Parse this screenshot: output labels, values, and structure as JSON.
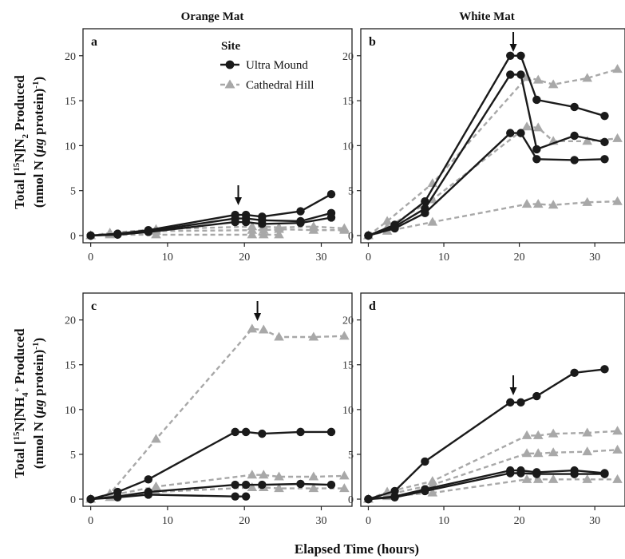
{
  "figure": {
    "col_titles": [
      "Orange Mat",
      "White Mat"
    ],
    "xlabel": "Elapsed Time (hours)",
    "ylabel_top": [
      "Total [",
      "15",
      "N]N",
      "2",
      " Produced"
    ],
    "ylabel_bottom": [
      "Total [",
      "15",
      "N]NH",
      "4",
      "+",
      " Produced"
    ],
    "ylabel_unit": [
      "(nmol N (",
      "μg",
      " protein)",
      "-1",
      ")"
    ],
    "legend": {
      "title": "Site",
      "entries": [
        {
          "name": "Ultra Mound",
          "marker": "circle",
          "color": "#1a1a1a",
          "dash": "solid"
        },
        {
          "name": "Cathedral Hill",
          "marker": "triangle",
          "color": "#a8a8a8",
          "dash": "dashed"
        }
      ]
    }
  },
  "chart_data": [
    {
      "type": "line",
      "panel": "a",
      "column": "Orange Mat",
      "xlim": [
        -1,
        34
      ],
      "ylim": [
        -0.8,
        23
      ],
      "xticks": [
        0,
        10,
        20,
        30
      ],
      "yticks": [
        0,
        5,
        10,
        15,
        20
      ],
      "arrows": [
        19.2
      ],
      "series": [
        {
          "name": "Ultra Mound",
          "x": [
            0,
            3.5,
            7.5,
            18.8,
            20.2,
            22.3,
            27.3,
            31.3
          ],
          "y": [
            0,
            0.2,
            0.6,
            2.3,
            2.3,
            2.1,
            2.7,
            4.6
          ]
        },
        {
          "name": "Ultra Mound",
          "x": [
            0,
            3.5,
            7.5,
            18.8,
            20.2,
            22.3,
            27.3,
            31.3
          ],
          "y": [
            0,
            0.2,
            0.5,
            1.9,
            1.9,
            1.7,
            1.6,
            2.5
          ]
        },
        {
          "name": "Ultra Mound",
          "x": [
            0,
            3.5,
            7.5,
            18.8,
            20.2,
            22.3,
            27.3,
            31.3
          ],
          "y": [
            0,
            0.1,
            0.4,
            1.5,
            1.5,
            1.3,
            1.4,
            2.0
          ]
        },
        {
          "name": "Cathedral Hill",
          "x": [
            0,
            2.5,
            8.5,
            21,
            22.5,
            24.5,
            29,
            33
          ],
          "y": [
            0,
            0.3,
            0.7,
            1.0,
            1.0,
            0.9,
            1.0,
            0.8
          ]
        },
        {
          "name": "Cathedral Hill",
          "x": [
            0,
            2.5,
            8.5,
            21,
            22.5,
            24.5,
            29,
            33
          ],
          "y": [
            0,
            0.2,
            0.5,
            0.6,
            0.6,
            0.7,
            0.6,
            0.6
          ]
        },
        {
          "name": "Cathedral Hill",
          "x": [
            0,
            2.5,
            8.5,
            21,
            22.5,
            24.5
          ],
          "y": [
            0,
            0.1,
            0.1,
            0.1,
            0.1,
            0.1
          ]
        }
      ]
    },
    {
      "type": "line",
      "panel": "b",
      "column": "White Mat",
      "xlim": [
        -1,
        34
      ],
      "ylim": [
        -0.8,
        23
      ],
      "xticks": [
        0,
        10,
        20,
        30
      ],
      "yticks": [
        0,
        5,
        10,
        15,
        20
      ],
      "arrows": [
        19.2
      ],
      "series": [
        {
          "name": "Ultra Mound",
          "x": [
            0,
            3.5,
            7.5,
            18.8,
            20.2,
            22.3,
            27.3,
            31.3
          ],
          "y": [
            0,
            1.2,
            3.8,
            20.0,
            20.0,
            15.1,
            14.3,
            13.3
          ]
        },
        {
          "name": "Ultra Mound",
          "x": [
            0,
            3.5,
            7.5,
            18.8,
            20.2,
            22.3,
            27.3,
            31.3
          ],
          "y": [
            0,
            1.0,
            3.0,
            17.9,
            17.9,
            9.6,
            11.1,
            10.4
          ]
        },
        {
          "name": "Ultra Mound",
          "x": [
            0,
            3.5,
            7.5,
            18.8,
            20.2,
            22.3,
            27.3,
            31.3
          ],
          "y": [
            0,
            0.8,
            2.5,
            11.4,
            11.4,
            8.5,
            8.4,
            8.5
          ]
        },
        {
          "name": "Cathedral Hill",
          "x": [
            0,
            2.5,
            8.5,
            21,
            22.5,
            24.5,
            29,
            33
          ],
          "y": [
            0,
            1.6,
            5.8,
            17.6,
            17.3,
            16.8,
            17.5,
            18.5
          ]
        },
        {
          "name": "Cathedral Hill",
          "x": [
            0,
            2.5,
            8.5,
            21,
            22.5,
            24.5,
            29,
            33
          ],
          "y": [
            0,
            0.9,
            4.0,
            12.1,
            12.0,
            10.5,
            10.5,
            10.8
          ]
        },
        {
          "name": "Cathedral Hill",
          "x": [
            0,
            2.5,
            8.5,
            21,
            22.5,
            24.5,
            29,
            33
          ],
          "y": [
            0,
            0.5,
            1.5,
            3.5,
            3.5,
            3.4,
            3.7,
            3.8
          ]
        }
      ]
    },
    {
      "type": "line",
      "panel": "c",
      "column": "Orange Mat",
      "xlim": [
        -1,
        34
      ],
      "ylim": [
        -0.8,
        23
      ],
      "xticks": [
        0,
        10,
        20,
        30
      ],
      "yticks": [
        0,
        5,
        10,
        15,
        20
      ],
      "arrows": [
        21.7
      ],
      "series": [
        {
          "name": "Ultra Mound",
          "x": [
            0,
            3.5,
            7.5,
            18.8,
            20.2,
            22.3,
            27.3,
            31.3
          ],
          "y": [
            0,
            0.8,
            2.2,
            7.5,
            7.5,
            7.3,
            7.5,
            7.5
          ]
        },
        {
          "name": "Ultra Mound",
          "x": [
            0,
            3.5,
            7.5,
            18.8,
            20.2,
            22.3,
            27.3,
            31.3
          ],
          "y": [
            0,
            0.3,
            0.8,
            1.6,
            1.6,
            1.6,
            1.7,
            1.6
          ]
        },
        {
          "name": "Ultra Mound",
          "x": [
            0,
            3.5,
            7.5,
            18.8,
            20.2
          ],
          "y": [
            0,
            0.2,
            0.5,
            0.3,
            0.3
          ]
        },
        {
          "name": "Cathedral Hill",
          "x": [
            0,
            2.5,
            8.5,
            21,
            22.5,
            24.5,
            29,
            33
          ],
          "y": [
            0,
            0.6,
            6.7,
            19.0,
            18.9,
            18.1,
            18.1,
            18.2
          ]
        },
        {
          "name": "Cathedral Hill",
          "x": [
            0,
            2.5,
            8.5,
            21,
            22.5,
            24.5,
            29,
            33
          ],
          "y": [
            0,
            0.4,
            1.4,
            2.7,
            2.7,
            2.5,
            2.5,
            2.6
          ]
        },
        {
          "name": "Cathedral Hill",
          "x": [
            0,
            2.5,
            8.5,
            21,
            22.5,
            24.5,
            29,
            33
          ],
          "y": [
            0,
            0.2,
            0.8,
            1.3,
            1.3,
            1.2,
            1.2,
            1.2
          ]
        }
      ]
    },
    {
      "type": "line",
      "panel": "d",
      "column": "White Mat",
      "xlim": [
        -1,
        34
      ],
      "ylim": [
        -0.8,
        23
      ],
      "xticks": [
        0,
        10,
        20,
        30
      ],
      "yticks": [
        0,
        5,
        10,
        15,
        20
      ],
      "arrows": [
        19.2
      ],
      "series": [
        {
          "name": "Ultra Mound",
          "x": [
            0,
            3.5,
            7.5,
            18.8,
            20.2,
            22.3,
            27.3,
            31.3
          ],
          "y": [
            0,
            0.9,
            4.2,
            10.8,
            10.8,
            11.5,
            14.1,
            14.5
          ]
        },
        {
          "name": "Ultra Mound",
          "x": [
            0,
            3.5,
            7.5,
            18.8,
            20.2,
            22.3,
            27.3,
            31.3
          ],
          "y": [
            0,
            0.3,
            1.1,
            3.2,
            3.2,
            3.0,
            3.2,
            2.9
          ]
        },
        {
          "name": "Ultra Mound",
          "x": [
            0,
            3.5,
            7.5,
            18.8,
            20.2,
            22.3,
            27.3,
            31.3
          ],
          "y": [
            0,
            0.2,
            0.9,
            2.9,
            2.9,
            2.8,
            2.8,
            2.8
          ]
        },
        {
          "name": "Cathedral Hill",
          "x": [
            0,
            2.5,
            8.5,
            21,
            22.5,
            24.5,
            29,
            33
          ],
          "y": [
            0,
            0.8,
            2.0,
            7.1,
            7.1,
            7.3,
            7.4,
            7.6
          ]
        },
        {
          "name": "Cathedral Hill",
          "x": [
            0,
            2.5,
            8.5,
            21,
            22.5,
            24.5,
            29,
            33
          ],
          "y": [
            0,
            0.5,
            1.6,
            5.1,
            5.1,
            5.2,
            5.3,
            5.5
          ]
        },
        {
          "name": "Cathedral Hill",
          "x": [
            0,
            2.5,
            8.5,
            21,
            22.5,
            24.5,
            29,
            33
          ],
          "y": [
            0,
            0.3,
            0.7,
            2.2,
            2.2,
            2.2,
            2.2,
            2.2
          ]
        }
      ]
    }
  ]
}
